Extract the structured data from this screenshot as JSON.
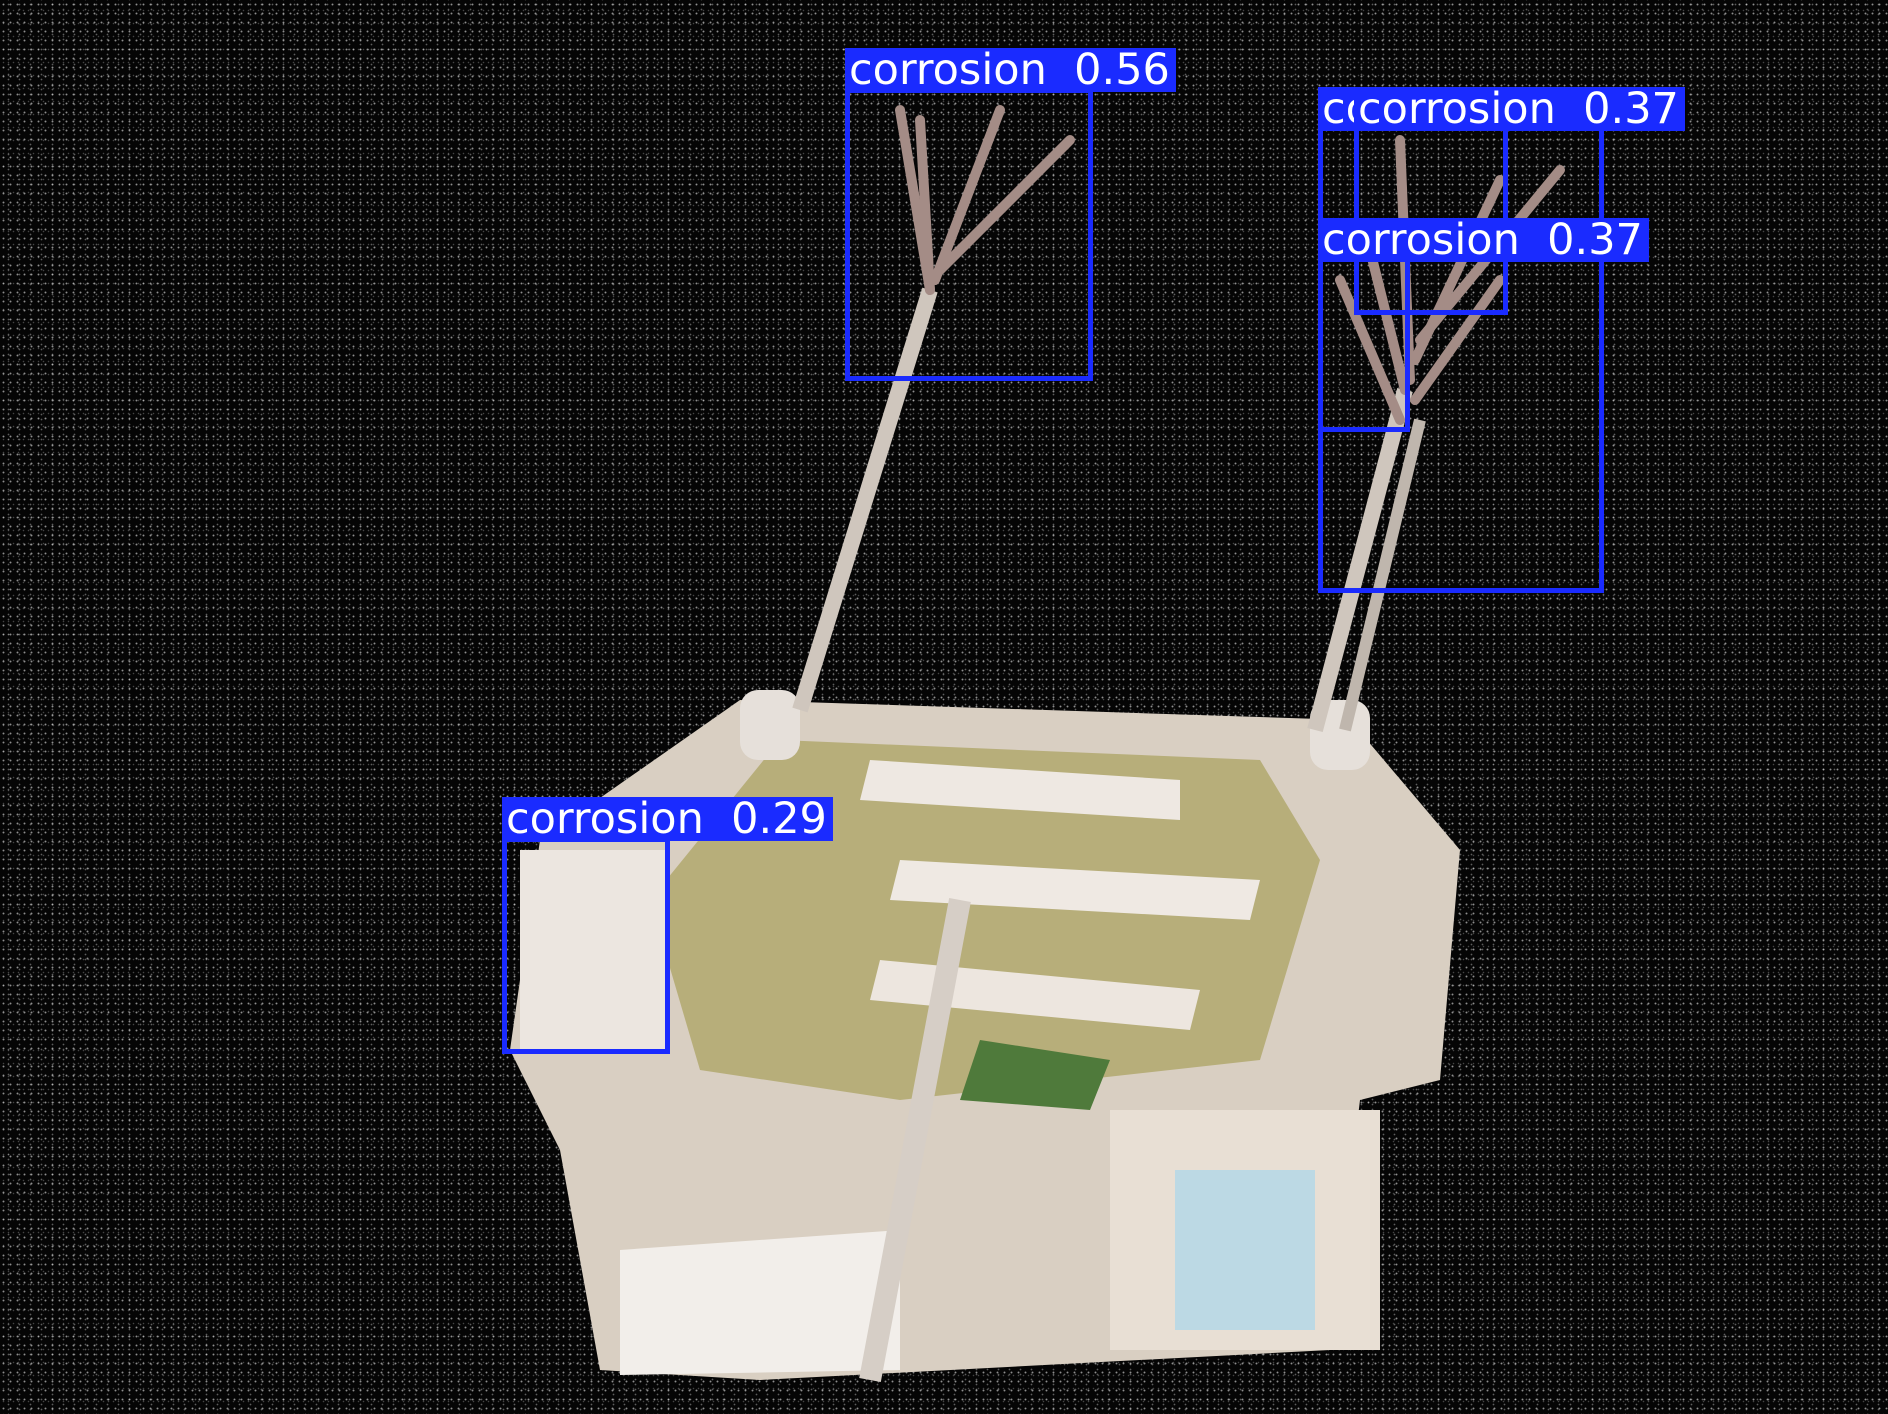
{
  "image": {
    "description_icon": "antenna-mount-photo",
    "accent_color": "#1a2bff"
  },
  "detections": [
    {
      "label": "corrosion",
      "score": "0.56",
      "text": "corrosion  0.56"
    },
    {
      "label": "corrosion",
      "score": "0.37",
      "text": "corrosion  0.37"
    },
    {
      "label": "corrosion",
      "score": "0.37",
      "text": "corrosion  0.37"
    },
    {
      "label": "corrosion",
      "score": "0.37",
      "text": "corrosion  0.37"
    },
    {
      "label": "corrosion",
      "score": "0.29",
      "text": "corrosion  0.29"
    }
  ]
}
